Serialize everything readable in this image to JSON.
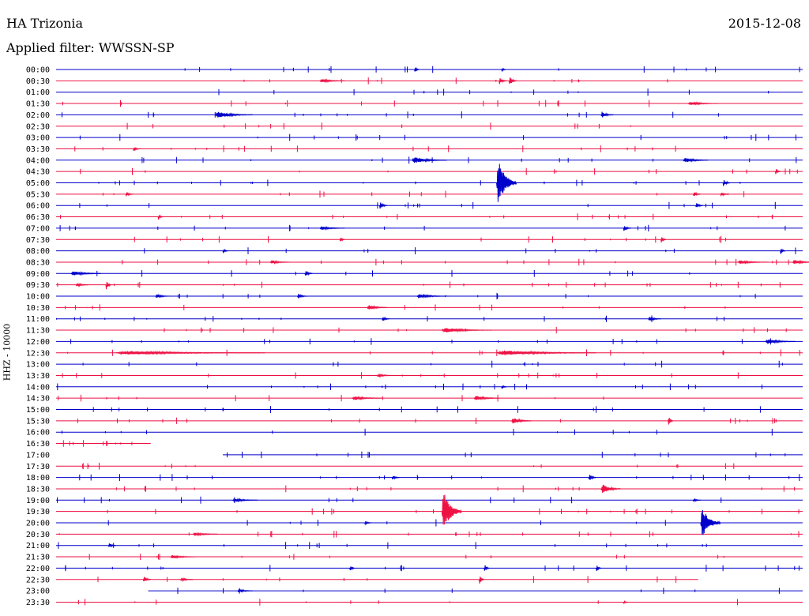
{
  "header": {
    "station": "HA Trizonia",
    "date": "2015-12-08",
    "filter": "Applied filter: WWSSN-SP"
  },
  "chart_data": {
    "type": "line",
    "ylabel": "HHZ - 10000",
    "colors": {
      "even": "#0000cc",
      "odd": "#ee1144"
    },
    "time_labels": [
      "00:00",
      "00:30",
      "01:00",
      "01:30",
      "02:00",
      "02:30",
      "03:00",
      "03:30",
      "04:00",
      "04:30",
      "05:00",
      "05:30",
      "06:00",
      "06:30",
      "07:00",
      "07:30",
      "08:00",
      "08:30",
      "09:00",
      "09:30",
      "10:00",
      "10:30",
      "11:00",
      "11:30",
      "12:00",
      "12:30",
      "13:00",
      "13:30",
      "14:00",
      "14:30",
      "15:00",
      "15:30",
      "16:00",
      "16:30",
      "17:00",
      "17:30",
      "18:00",
      "18:30",
      "19:00",
      "19:30",
      "20:00",
      "20:30",
      "21:00",
      "21:30",
      "22:00",
      "22:30",
      "23:00",
      "23:30"
    ],
    "trace_extent_minutes": [
      [
        0,
        30
      ],
      [
        0,
        30
      ],
      [
        0,
        30
      ],
      [
        0,
        30
      ],
      [
        0,
        30
      ],
      [
        0,
        30
      ],
      [
        0,
        30
      ],
      [
        0,
        30
      ],
      [
        0,
        30
      ],
      [
        0,
        30
      ],
      [
        0,
        30
      ],
      [
        0,
        30
      ],
      [
        0,
        30
      ],
      [
        0,
        30
      ],
      [
        0,
        30
      ],
      [
        0,
        30
      ],
      [
        0,
        30
      ],
      [
        0,
        30
      ],
      [
        0,
        30
      ],
      [
        0,
        30
      ],
      [
        0,
        30
      ],
      [
        0,
        30
      ],
      [
        0,
        30
      ],
      [
        0,
        30
      ],
      [
        0,
        30
      ],
      [
        0,
        30
      ],
      [
        0,
        30
      ],
      [
        0,
        30
      ],
      [
        0,
        30
      ],
      [
        0,
        30
      ],
      [
        0,
        30
      ],
      [
        0,
        30
      ],
      [
        0,
        30
      ],
      [
        0,
        3.8
      ],
      [
        6.7,
        30
      ],
      [
        0,
        30
      ],
      [
        0,
        30
      ],
      [
        0,
        30
      ],
      [
        0,
        30
      ],
      [
        0,
        30
      ],
      [
        0,
        30
      ],
      [
        0,
        30
      ],
      [
        0,
        30
      ],
      [
        0,
        30
      ],
      [
        0,
        30
      ],
      [
        0,
        25.8
      ],
      [
        3.7,
        30
      ],
      [
        0,
        30
      ]
    ],
    "events": [
      {
        "row": 0,
        "minute": 14.4,
        "amp": 5,
        "dur": 0.2
      },
      {
        "row": 0,
        "minute": 17.9,
        "amp": 3,
        "dur": 0.2
      },
      {
        "row": 1,
        "minute": 10.6,
        "amp": 3,
        "dur": 1.0
      },
      {
        "row": 1,
        "minute": 17.8,
        "amp": 6,
        "dur": 0.3
      },
      {
        "row": 1,
        "minute": 18.2,
        "amp": 8,
        "dur": 0.3
      },
      {
        "row": 3,
        "minute": 25.4,
        "amp": 3,
        "dur": 1.2
      },
      {
        "row": 4,
        "minute": 6.4,
        "amp": 5,
        "dur": 1.5
      },
      {
        "row": 4,
        "minute": 21.9,
        "amp": 5,
        "dur": 0.5
      },
      {
        "row": 7,
        "minute": 3.1,
        "amp": 4,
        "dur": 0.3
      },
      {
        "row": 8,
        "minute": 14.3,
        "amp": 5,
        "dur": 1.4
      },
      {
        "row": 8,
        "minute": 25.2,
        "amp": 4,
        "dur": 1.0
      },
      {
        "row": 9,
        "minute": 28.9,
        "amp": 6,
        "dur": 0.2
      },
      {
        "row": 10,
        "minute": 17.7,
        "amp": 40,
        "dur": 0.8
      },
      {
        "row": 10,
        "minute": 26.8,
        "amp": 6,
        "dur": 0.3
      },
      {
        "row": 11,
        "minute": 2.8,
        "amp": 4,
        "dur": 0.3
      },
      {
        "row": 11,
        "minute": 25.6,
        "amp": 5,
        "dur": 0.3
      },
      {
        "row": 11,
        "minute": 26.7,
        "amp": 4,
        "dur": 0.3
      },
      {
        "row": 12,
        "minute": 13.0,
        "amp": 6,
        "dur": 0.3
      },
      {
        "row": 12,
        "minute": 25.7,
        "amp": 5,
        "dur": 0.3
      },
      {
        "row": 13,
        "minute": 4.1,
        "amp": 5,
        "dur": 0.2
      },
      {
        "row": 14,
        "minute": 10.6,
        "amp": 3,
        "dur": 1.0
      },
      {
        "row": 14,
        "minute": 22.8,
        "amp": 5,
        "dur": 0.3
      },
      {
        "row": 15,
        "minute": 11.4,
        "amp": 5,
        "dur": 0.2
      },
      {
        "row": 15,
        "minute": 24.3,
        "amp": 6,
        "dur": 0.2
      },
      {
        "row": 16,
        "minute": 6.7,
        "amp": 5,
        "dur": 0.2
      },
      {
        "row": 16,
        "minute": 29.1,
        "amp": 6,
        "dur": 0.2
      },
      {
        "row": 17,
        "minute": 8.6,
        "amp": 3,
        "dur": 0.8
      },
      {
        "row": 17,
        "minute": 27.4,
        "amp": 3,
        "dur": 1.2
      },
      {
        "row": 17,
        "minute": 29.6,
        "amp": 4,
        "dur": 0.8
      },
      {
        "row": 18,
        "minute": 0.6,
        "amp": 4,
        "dur": 1.2
      },
      {
        "row": 18,
        "minute": 10.0,
        "amp": 5,
        "dur": 0.3
      },
      {
        "row": 19,
        "minute": 0.8,
        "amp": 3,
        "dur": 0.5
      },
      {
        "row": 19,
        "minute": 2.0,
        "amp": 10,
        "dur": 0.2
      },
      {
        "row": 20,
        "minute": 4.0,
        "amp": 3,
        "dur": 0.6
      },
      {
        "row": 20,
        "minute": 9.7,
        "amp": 4,
        "dur": 0.4
      },
      {
        "row": 20,
        "minute": 14.5,
        "amp": 3,
        "dur": 1.3
      },
      {
        "row": 21,
        "minute": 12.5,
        "amp": 4,
        "dur": 0.8
      },
      {
        "row": 22,
        "minute": 13.1,
        "amp": 4,
        "dur": 0.3
      },
      {
        "row": 22,
        "minute": 23.8,
        "amp": 4,
        "dur": 0.5
      },
      {
        "row": 23,
        "minute": 15.5,
        "amp": 4,
        "dur": 2.0
      },
      {
        "row": 24,
        "minute": 28.5,
        "amp": 4,
        "dur": 1.2
      },
      {
        "row": 25,
        "minute": 2.4,
        "amp": 3,
        "dur": 6.0
      },
      {
        "row": 25,
        "minute": 17.7,
        "amp": 4,
        "dur": 4.0
      },
      {
        "row": 27,
        "minute": 12.9,
        "amp": 3,
        "dur": 0.6
      },
      {
        "row": 28,
        "minute": 17.9,
        "amp": 4,
        "dur": 0.2
      },
      {
        "row": 29,
        "minute": 11.9,
        "amp": 3,
        "dur": 1.2
      },
      {
        "row": 29,
        "minute": 16.8,
        "amp": 4,
        "dur": 1.0
      },
      {
        "row": 31,
        "minute": 18.3,
        "amp": 5,
        "dur": 0.8
      },
      {
        "row": 31,
        "minute": 24.6,
        "amp": 8,
        "dur": 0.2
      },
      {
        "row": 36,
        "minute": 13.5,
        "amp": 4,
        "dur": 0.3
      },
      {
        "row": 36,
        "minute": 21.4,
        "amp": 6,
        "dur": 0.3
      },
      {
        "row": 37,
        "minute": 21.9,
        "amp": 8,
        "dur": 0.8
      },
      {
        "row": 38,
        "minute": 7.1,
        "amp": 3,
        "dur": 1.0
      },
      {
        "row": 38,
        "minute": 25.6,
        "amp": 3,
        "dur": 0.3
      },
      {
        "row": 39,
        "minute": 15.5,
        "amp": 36,
        "dur": 0.8
      },
      {
        "row": 40,
        "minute": 25.9,
        "amp": 26,
        "dur": 0.8
      },
      {
        "row": 40,
        "minute": 12.4,
        "amp": 3,
        "dur": 0.3
      },
      {
        "row": 41,
        "minute": 5.5,
        "amp": 3,
        "dur": 1.0
      },
      {
        "row": 42,
        "minute": 2.1,
        "amp": 4,
        "dur": 0.3
      },
      {
        "row": 43,
        "minute": 4.6,
        "amp": 3,
        "dur": 1.0
      },
      {
        "row": 44,
        "minute": 11.8,
        "amp": 6,
        "dur": 0.2
      },
      {
        "row": 44,
        "minute": 17.2,
        "amp": 8,
        "dur": 0.2
      },
      {
        "row": 44,
        "minute": 21.7,
        "amp": 6,
        "dur": 0.2
      },
      {
        "row": 45,
        "minute": 3.5,
        "amp": 6,
        "dur": 0.3
      },
      {
        "row": 45,
        "minute": 5.0,
        "amp": 3,
        "dur": 0.5
      },
      {
        "row": 45,
        "minute": 17.0,
        "amp": 8,
        "dur": 0.2
      },
      {
        "row": 46,
        "minute": 7.3,
        "amp": 3,
        "dur": 0.6
      },
      {
        "row": 47,
        "minute": 22.8,
        "amp": 3,
        "dur": 0.2
      }
    ]
  }
}
